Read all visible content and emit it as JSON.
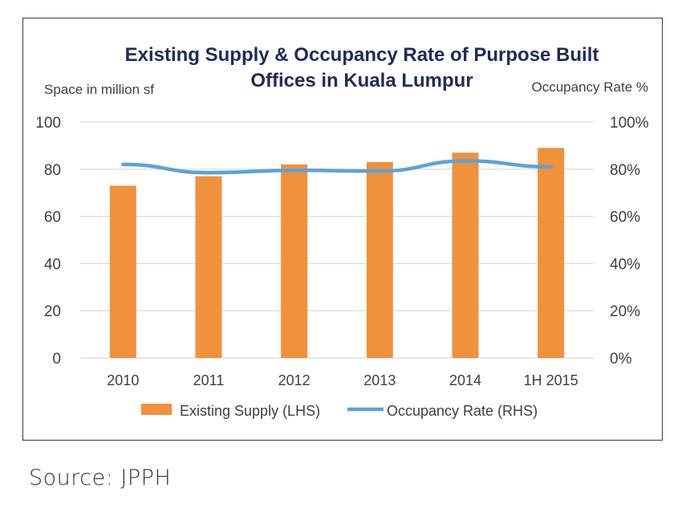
{
  "source": "Source: JPPH",
  "colors": {
    "bar": "#F0913C",
    "line": "#5BA3D9",
    "grid": "#D9D9D9",
    "title": "#1F2A5C",
    "text": "#404040"
  },
  "chart_data": {
    "type": "bar",
    "title_line1": "Existing Supply & Occupancy Rate of Purpose Built",
    "title_line2": "Offices in Kuala Lumpur",
    "ylabel_left": "Space in million sf",
    "ylabel_right": "Occupancy Rate %",
    "categories": [
      "2010",
      "2011",
      "2012",
      "2013",
      "2014",
      "1H 2015"
    ],
    "left_ticks": [
      "0",
      "20",
      "40",
      "60",
      "80",
      "100"
    ],
    "right_ticks": [
      "0%",
      "20%",
      "40%",
      "60%",
      "80%",
      "100%"
    ],
    "ylim_left": [
      0,
      100
    ],
    "ylim_right": [
      0,
      100
    ],
    "grid": true,
    "legend_position": "bottom",
    "series": [
      {
        "name": "Existing Supply (LHS)",
        "kind": "bar",
        "axis": "left",
        "values": [
          73,
          77,
          82,
          83,
          87,
          89
        ]
      },
      {
        "name": "Occupancy Rate (RHS)",
        "kind": "line",
        "axis": "right",
        "values": [
          82,
          78.5,
          79.5,
          79.2,
          83.5,
          81
        ]
      }
    ]
  }
}
